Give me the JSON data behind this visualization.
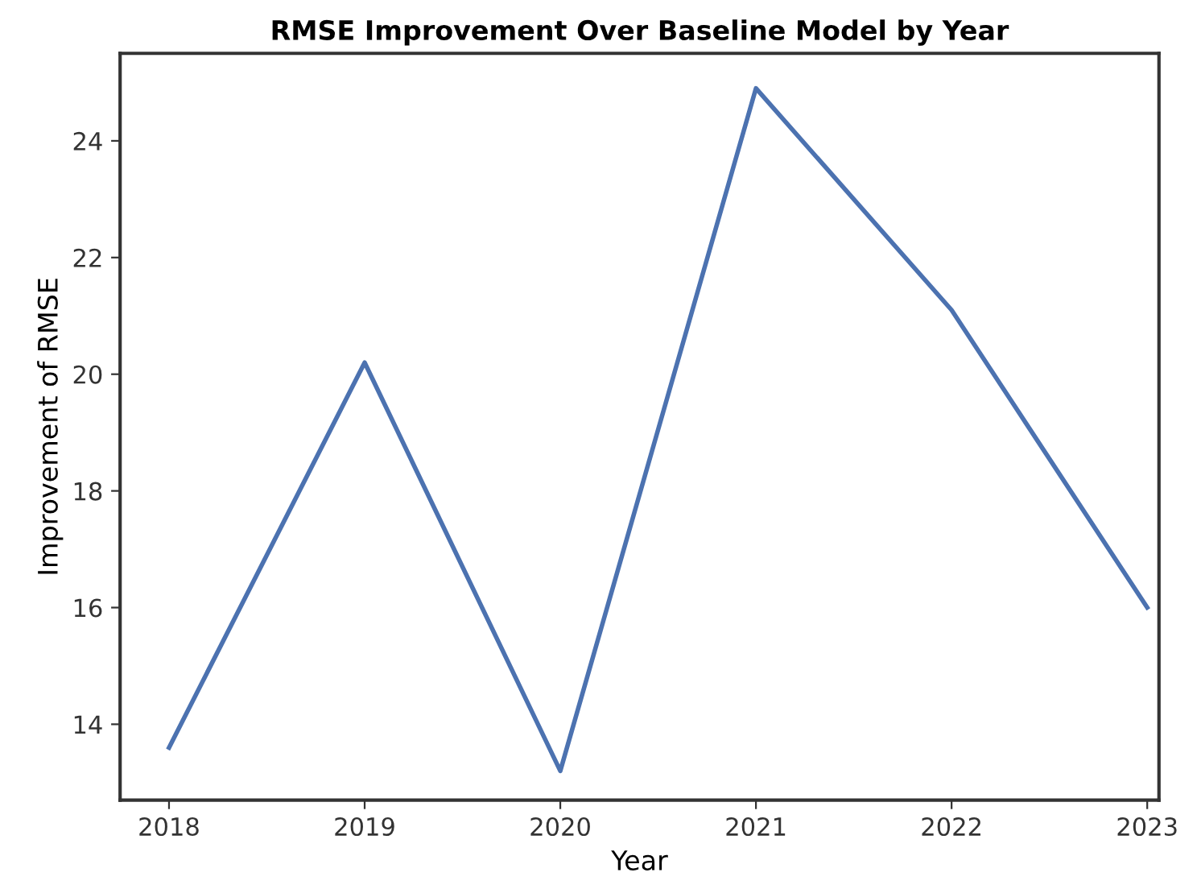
{
  "chart_data": {
    "type": "line",
    "title": "RMSE Improvement Over Baseline Model by Year",
    "xlabel": "Year",
    "ylabel": "Improvement of RMSE",
    "x": [
      2018,
      2019,
      2020,
      2021,
      2022,
      2023
    ],
    "series": [
      {
        "color": "#4c72b0",
        "values": [
          13.6,
          20.2,
          13.2,
          24.9,
          21.1,
          16.0
        ]
      }
    ],
    "xlim": [
      2017.75,
      2023.06
    ],
    "xticks": [
      2018,
      2019,
      2020,
      2021,
      2022,
      2023
    ],
    "ylim": [
      12.7,
      25.5
    ],
    "yticks": [
      14,
      16,
      18,
      20,
      22,
      24
    ],
    "grid": false,
    "legend": false
  }
}
